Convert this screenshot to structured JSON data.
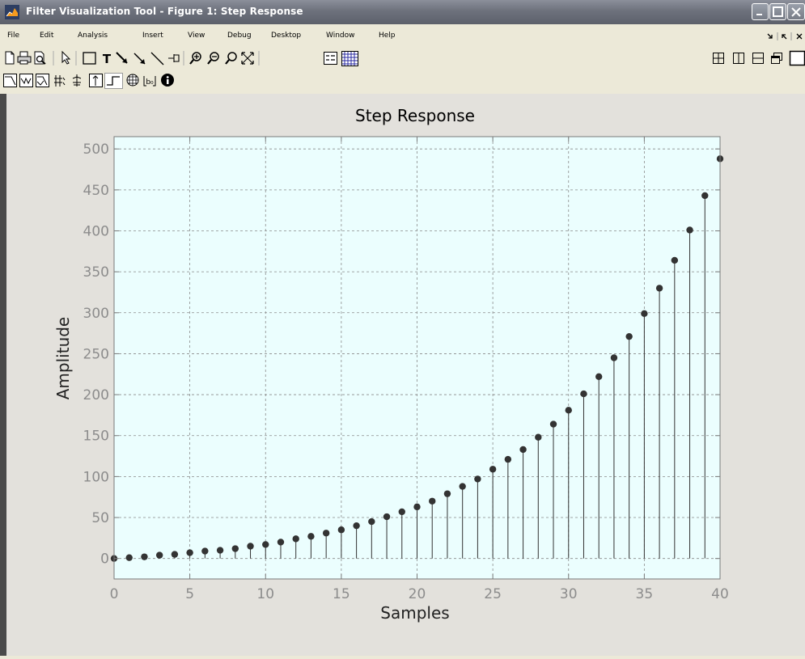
{
  "window": {
    "title": "Filter Visualization Tool - Figure 1: Step Response",
    "minimize_icon": "minimize-icon",
    "maximize_icon": "maximize-icon",
    "close_icon": "close-icon"
  },
  "menubar": {
    "items": [
      "File",
      "Edit",
      "Analysis",
      "Insert",
      "View",
      "Debug",
      "Desktop",
      "Window",
      "Help"
    ],
    "undock_icon": "undock-arrow-icon",
    "dock_icon": "dock-arrow-icon",
    "close_doc_icon": "close-icon"
  },
  "toolbar1": {
    "icons": [
      "new-file-icon",
      "print-icon",
      "print-preview-icon",
      "select-pointer-icon",
      "rectangle-icon",
      "text-icon",
      "arrow-icon",
      "double-arrow-icon",
      "line-icon",
      "legend-pin-icon",
      "zoom-in-icon",
      "zoom-out-icon",
      "pan-icon",
      "full-view-icon",
      "legend-icon",
      "grid-icon"
    ],
    "layout_icons": [
      "tile-icon",
      "split-vertical-icon",
      "split-horizontal-icon",
      "float-icon",
      "maximize-pane-icon"
    ]
  },
  "toolbar2": {
    "icons": [
      "magnitude-response-icon",
      "phase-response-icon",
      "magnitude-phase-icon",
      "group-delay-icon",
      "phase-delay-icon",
      "impulse-response-icon",
      "step-response-icon",
      "pole-zero-icon",
      "coefficients-icon",
      "filter-info-icon"
    ]
  },
  "chart_data": {
    "type": "stem",
    "title": "Step Response",
    "xlabel": "Samples",
    "ylabel": "Amplitude",
    "xlim": [
      0,
      40
    ],
    "ylim": [
      -25,
      515
    ],
    "xticks": [
      0,
      5,
      10,
      15,
      20,
      25,
      30,
      35,
      40
    ],
    "yticks": [
      0,
      50,
      100,
      150,
      200,
      250,
      300,
      350,
      400,
      450,
      500
    ],
    "grid": true,
    "background": "#ebfefe",
    "marker_color": "#333333",
    "series": [
      {
        "x": [
          0,
          1,
          2,
          3,
          4,
          5,
          6,
          7,
          8,
          9,
          10,
          11,
          12,
          13,
          14,
          15,
          16,
          17,
          18,
          19,
          20,
          21,
          22,
          23,
          24,
          25,
          26,
          27,
          28,
          29,
          30,
          31,
          32,
          33,
          34,
          35,
          36,
          37,
          38,
          39,
          40
        ],
        "values": [
          0,
          1,
          2,
          4,
          5,
          7,
          9,
          10,
          12,
          15,
          17,
          20,
          24,
          27,
          31,
          35,
          40,
          45,
          51,
          57,
          63,
          70,
          79,
          88,
          97,
          109,
          121,
          133,
          148,
          164,
          181,
          201,
          222,
          245,
          271,
          299,
          330,
          364,
          401,
          443,
          488
        ]
      }
    ]
  }
}
